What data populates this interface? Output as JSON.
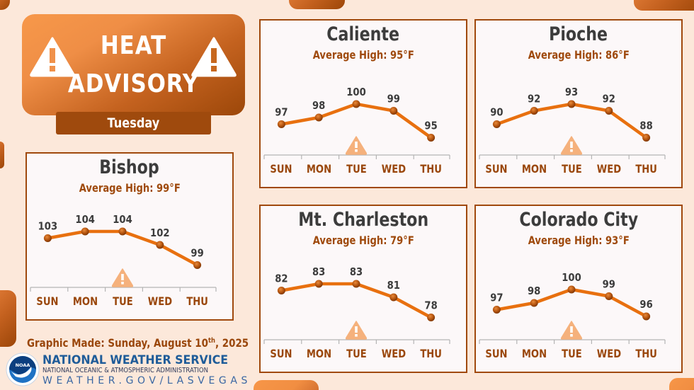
{
  "header": {
    "title_line1": "HEAT",
    "title_line2": "ADVISORY",
    "day": "Tuesday",
    "icon": "warning-triangle-icon"
  },
  "colors": {
    "background": "#fce8da",
    "accent_orange": "#f39244",
    "accent_dark": "#9f4a0d",
    "line": "#e8700f",
    "marker": "#b4540f",
    "city_text": "#3c3c3c",
    "panel_bg": "#fcf8f9",
    "nws_blue": "#1f5c99"
  },
  "footer": {
    "made_prefix": "Graphic Made: Sunday, August 10",
    "made_suffix_sup": "th",
    "made_year": ", 2025",
    "nws_name": "NATIONAL WEATHER SERVICE",
    "noaa_name": "NATIONAL OCEANIC & ATMOSPHERIC ADMINISTRATION",
    "website": "WEATHER.GOV/LASVEGAS",
    "logo_text": "NOAA"
  },
  "chart_data": [
    {
      "type": "line",
      "title": "Bishop",
      "subtitle": "Average High: 99°F",
      "categories": [
        "SUN",
        "MON",
        "TUE",
        "WED",
        "THU"
      ],
      "values": [
        103,
        104,
        104,
        102,
        99
      ],
      "highlight_category": "TUE",
      "xlabel": "",
      "ylabel": "",
      "grid": false
    },
    {
      "type": "line",
      "title": "Caliente",
      "subtitle": "Average High: 95°F",
      "categories": [
        "SUN",
        "MON",
        "TUE",
        "WED",
        "THU"
      ],
      "values": [
        97,
        98,
        100,
        99,
        95
      ],
      "highlight_category": "TUE",
      "xlabel": "",
      "ylabel": "",
      "grid": false
    },
    {
      "type": "line",
      "title": "Pioche",
      "subtitle": "Average High: 86°F",
      "categories": [
        "SUN",
        "MON",
        "TUE",
        "WED",
        "THU"
      ],
      "values": [
        90,
        92,
        93,
        92,
        88
      ],
      "highlight_category": "TUE",
      "xlabel": "",
      "ylabel": "",
      "grid": false
    },
    {
      "type": "line",
      "title": "Mt. Charleston",
      "subtitle": "Average High: 79°F",
      "categories": [
        "SUN",
        "MON",
        "TUE",
        "WED",
        "THU"
      ],
      "values": [
        82,
        83,
        83,
        81,
        78
      ],
      "highlight_category": "TUE",
      "xlabel": "",
      "ylabel": "",
      "grid": false
    },
    {
      "type": "line",
      "title": "Colorado City",
      "subtitle": "Average High: 93°F",
      "categories": [
        "SUN",
        "MON",
        "TUE",
        "WED",
        "THU"
      ],
      "values": [
        97,
        98,
        100,
        99,
        96
      ],
      "highlight_category": "TUE",
      "xlabel": "",
      "ylabel": "",
      "grid": false
    }
  ]
}
